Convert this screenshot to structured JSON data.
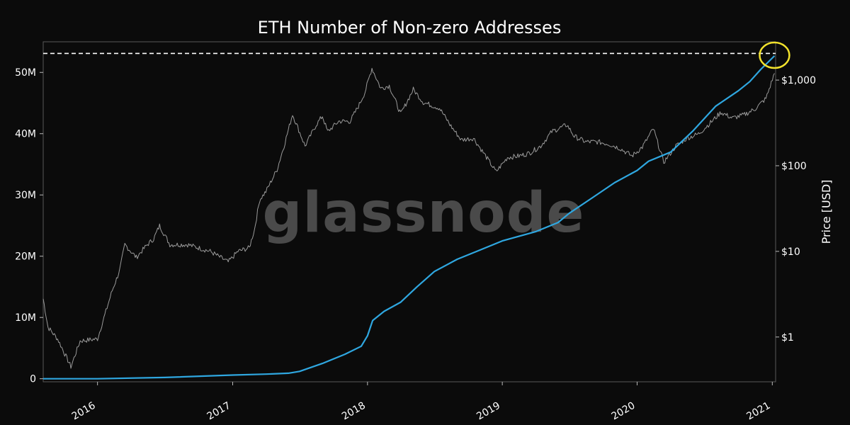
{
  "chart_data": {
    "type": "line",
    "title": "ETH Number of Non-zero Addresses",
    "watermark": "glassnode",
    "x_tick_labels": [
      "2016",
      "2017",
      "2018",
      "2019",
      "2020",
      "2021"
    ],
    "x_ticks": [
      "2016-01-01",
      "2017-01-01",
      "2018-01-01",
      "2019-01-01",
      "2020-01-01",
      "2021-01-01"
    ],
    "xlim": [
      "2015-08-07",
      "2021-01-10"
    ],
    "y_left": {
      "ticks": [
        0,
        10000000,
        20000000,
        30000000,
        40000000,
        50000000
      ],
      "tick_labels": [
        "0",
        "10M",
        "20M",
        "30M",
        "40M",
        "50M"
      ],
      "lim": [
        -500000,
        55000000
      ]
    },
    "y_right": {
      "label": "Price [USD]",
      "scale": "log",
      "ticks": [
        1,
        10,
        100,
        1000
      ],
      "tick_labels": [
        "$1",
        "$10",
        "$100",
        "$1,000"
      ],
      "lim": [
        0.3,
        2800
      ]
    },
    "grid": false,
    "reference_line": {
      "axis": "left",
      "value": 53100000,
      "style": "dashed",
      "color": "#ffffff"
    },
    "highlight": {
      "shape": "circle",
      "color": "#f2e22c",
      "x": "2021-01-07",
      "y_left": 52800000
    },
    "series": [
      {
        "axis": "left",
        "color": "#2fa7e0",
        "x": [
          "2015-08-07",
          "2016-01-01",
          "2016-07-01",
          "2017-01-01",
          "2017-04-01",
          "2017-06-01",
          "2017-07-01",
          "2017-09-01",
          "2017-11-01",
          "2017-12-15",
          "2018-01-01",
          "2018-01-15",
          "2018-02-15",
          "2018-04-01",
          "2018-05-15",
          "2018-07-01",
          "2018-09-01",
          "2018-11-01",
          "2019-01-01",
          "2019-04-01",
          "2019-06-01",
          "2019-07-01",
          "2019-09-01",
          "2019-11-01",
          "2020-01-01",
          "2020-02-01",
          "2020-04-01",
          "2020-06-01",
          "2020-08-01",
          "2020-10-01",
          "2020-11-01",
          "2020-12-01",
          "2021-01-07"
        ],
        "y": [
          0,
          0,
          200000,
          600000,
          750000,
          900000,
          1200000,
          2500000,
          4000000,
          5300000,
          7000000,
          9500000,
          11000000,
          12500000,
          15000000,
          17500000,
          19500000,
          21000000,
          22500000,
          24000000,
          25500000,
          27000000,
          29500000,
          32000000,
          34000000,
          35500000,
          37000000,
          40500000,
          44500000,
          47000000,
          48500000,
          50500000,
          52700000
        ]
      },
      {
        "axis": "right",
        "color": "#9a9a9a",
        "x": [
          "2015-08-07",
          "2015-08-20",
          "2015-09-15",
          "2015-10-21",
          "2015-11-15",
          "2016-01-01",
          "2016-02-10",
          "2016-03-01",
          "2016-03-15",
          "2016-04-15",
          "2016-05-15",
          "2016-06-01",
          "2016-06-17",
          "2016-07-15",
          "2016-09-01",
          "2016-11-01",
          "2016-12-20",
          "2017-01-15",
          "2017-02-15",
          "2017-03-01",
          "2017-03-15",
          "2017-04-01",
          "2017-05-01",
          "2017-05-20",
          "2017-06-12",
          "2017-07-16",
          "2017-08-15",
          "2017-09-01",
          "2017-09-15",
          "2017-10-15",
          "2017-11-15",
          "2017-12-10",
          "2017-12-25",
          "2018-01-13",
          "2018-02-06",
          "2018-03-01",
          "2018-04-01",
          "2018-05-05",
          "2018-06-01",
          "2018-07-15",
          "2018-08-15",
          "2018-09-12",
          "2018-10-15",
          "2018-11-25",
          "2018-12-15",
          "2019-01-15",
          "2019-02-15",
          "2019-03-15",
          "2019-04-15",
          "2019-05-15",
          "2019-06-25",
          "2019-07-15",
          "2019-08-15",
          "2019-09-15",
          "2019-10-15",
          "2019-11-15",
          "2019-12-18",
          "2020-01-15",
          "2020-02-14",
          "2020-03-13",
          "2020-04-15",
          "2020-05-15",
          "2020-06-15",
          "2020-07-15",
          "2020-08-15",
          "2020-09-15",
          "2020-10-15",
          "2020-11-15",
          "2020-12-15",
          "2021-01-07"
        ],
        "y": [
          2.8,
          1.3,
          0.95,
          0.45,
          0.9,
          0.95,
          3.5,
          6.0,
          12.0,
          8.5,
          12.0,
          14.0,
          20.0,
          12.0,
          12.0,
          10.0,
          7.5,
          10.0,
          11.0,
          18.0,
          40.0,
          50.0,
          90.0,
          170.0,
          400.0,
          170.0,
          300.0,
          380.0,
          250.0,
          330.0,
          330.0,
          520.0,
          720.0,
          1380.0,
          800.0,
          860.0,
          400.0,
          780.0,
          550.0,
          470.0,
          290.0,
          200.0,
          210.0,
          115.0,
          85.0,
          125.0,
          130.0,
          140.0,
          170.0,
          250.0,
          300.0,
          220.0,
          190.0,
          190.0,
          180.0,
          160.0,
          130.0,
          165.0,
          270.0,
          110.0,
          170.0,
          210.0,
          235.0,
          310.0,
          420.0,
          360.0,
          390.0,
          460.0,
          610.0,
          1200.0
        ]
      }
    ]
  }
}
